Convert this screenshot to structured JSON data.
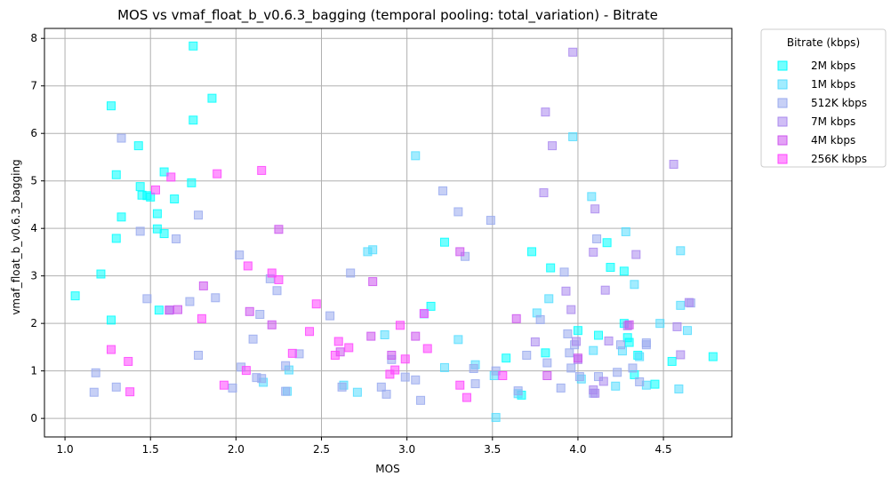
{
  "chart_data": {
    "type": "scatter",
    "title": "MOS vs vmaf_float_b_v0.6.3_bagging (temporal pooling: total_variation) - Bitrate",
    "xlabel": "MOS",
    "ylabel": "vmaf_float_b_v0.6.3_bagging",
    "xlim": [
      0.88,
      4.9
    ],
    "ylim": [
      -0.39,
      8.21
    ],
    "xticks": [
      "1.0",
      "1.5",
      "2.0",
      "2.5",
      "3.0",
      "3.5",
      "4.0",
      "4.5"
    ],
    "xtick_values": [
      1.0,
      1.5,
      2.0,
      2.5,
      3.0,
      3.5,
      4.0,
      4.5
    ],
    "yticks": [
      "0",
      "1",
      "2",
      "3",
      "4",
      "5",
      "6",
      "7",
      "8"
    ],
    "ytick_values": [
      0,
      1,
      2,
      3,
      4,
      5,
      6,
      7,
      8
    ],
    "grid": true,
    "legend_title": "Bitrate (kbps)",
    "legend_position": "outside-right",
    "series": [
      {
        "name": "2M kbps",
        "color": "#00ffff",
        "points": [
          [
            1.06,
            2.58
          ],
          [
            1.21,
            3.04
          ],
          [
            1.27,
            6.58
          ],
          [
            1.27,
            2.07
          ],
          [
            1.3,
            5.13
          ],
          [
            1.3,
            3.79
          ],
          [
            1.33,
            4.24
          ],
          [
            1.43,
            5.74
          ],
          [
            1.44,
            4.88
          ],
          [
            1.45,
            4.7
          ],
          [
            1.48,
            4.69
          ],
          [
            1.5,
            4.66
          ],
          [
            1.54,
            4.31
          ],
          [
            1.54,
            3.99
          ],
          [
            1.55,
            2.28
          ],
          [
            1.58,
            3.89
          ],
          [
            1.58,
            5.19
          ],
          [
            1.64,
            4.62
          ],
          [
            1.75,
            7.84
          ],
          [
            1.75,
            6.28
          ],
          [
            1.74,
            4.96
          ],
          [
            1.86,
            6.74
          ],
          [
            3.14,
            2.36
          ],
          [
            3.22,
            3.71
          ],
          [
            3.73,
            3.51
          ],
          [
            3.84,
            3.17
          ],
          [
            4.0,
            1.85
          ],
          [
            4.12,
            1.75
          ],
          [
            4.17,
            3.7
          ],
          [
            4.19,
            3.18
          ],
          [
            4.27,
            2.0
          ],
          [
            4.29,
            1.7
          ],
          [
            4.3,
            1.6
          ],
          [
            4.33,
            0.92
          ],
          [
            4.35,
            1.33
          ],
          [
            4.45,
            0.72
          ],
          [
            4.55,
            1.2
          ],
          [
            4.79,
            1.3
          ],
          [
            4.27,
            3.1
          ],
          [
            3.58,
            1.27
          ],
          [
            3.67,
            0.49
          ],
          [
            3.81,
            1.38
          ]
        ]
      },
      {
        "name": "1M kbps",
        "color": "#55ddff",
        "points": [
          [
            2.16,
            0.76
          ],
          [
            2.31,
            1.02
          ],
          [
            2.3,
            0.57
          ],
          [
            2.63,
            0.7
          ],
          [
            2.71,
            0.55
          ],
          [
            2.77,
            3.51
          ],
          [
            2.8,
            3.55
          ],
          [
            2.87,
            1.76
          ],
          [
            3.05,
            5.53
          ],
          [
            3.1,
            2.2
          ],
          [
            3.22,
            1.07
          ],
          [
            3.3,
            1.66
          ],
          [
            3.4,
            1.13
          ],
          [
            3.51,
            0.9
          ],
          [
            3.52,
            0.02
          ],
          [
            3.65,
            0.52
          ],
          [
            3.76,
            2.22
          ],
          [
            3.83,
            2.52
          ],
          [
            3.97,
            5.93
          ],
          [
            4.02,
            0.83
          ],
          [
            4.08,
            4.67
          ],
          [
            4.09,
            1.43
          ],
          [
            4.22,
            0.68
          ],
          [
            4.26,
            1.42
          ],
          [
            4.28,
            3.93
          ],
          [
            4.33,
            2.82
          ],
          [
            4.4,
            0.7
          ],
          [
            4.48,
            2.0
          ],
          [
            4.59,
            0.62
          ],
          [
            4.6,
            2.38
          ],
          [
            4.6,
            3.53
          ],
          [
            4.64,
            1.85
          ],
          [
            4.36,
            1.3
          ]
        ]
      },
      {
        "name": "512K kbps",
        "color": "#99aaee",
        "points": [
          [
            1.17,
            0.55
          ],
          [
            1.18,
            0.96
          ],
          [
            1.3,
            0.66
          ],
          [
            1.33,
            5.9
          ],
          [
            1.44,
            3.94
          ],
          [
            1.48,
            2.52
          ],
          [
            1.61,
            2.28
          ],
          [
            1.65,
            3.78
          ],
          [
            1.73,
            2.46
          ],
          [
            1.78,
            4.28
          ],
          [
            1.78,
            1.33
          ],
          [
            1.88,
            2.54
          ],
          [
            1.98,
            0.64
          ],
          [
            2.02,
            3.44
          ],
          [
            2.03,
            1.08
          ],
          [
            2.1,
            1.67
          ],
          [
            2.12,
            0.86
          ],
          [
            2.14,
            2.19
          ],
          [
            2.15,
            0.84
          ],
          [
            2.2,
            2.94
          ],
          [
            2.24,
            2.69
          ],
          [
            2.29,
            0.57
          ],
          [
            2.29,
            1.11
          ],
          [
            2.37,
            1.36
          ],
          [
            2.55,
            2.16
          ],
          [
            2.62,
            0.66
          ],
          [
            2.67,
            3.06
          ],
          [
            2.85,
            0.66
          ],
          [
            2.88,
            0.51
          ],
          [
            2.91,
            1.24
          ],
          [
            2.99,
            0.87
          ],
          [
            3.05,
            0.81
          ],
          [
            3.08,
            0.38
          ],
          [
            3.21,
            4.79
          ],
          [
            3.3,
            4.35
          ],
          [
            3.34,
            3.41
          ],
          [
            3.39,
            1.05
          ],
          [
            3.4,
            0.73
          ],
          [
            3.49,
            4.17
          ],
          [
            3.52,
            1.0
          ],
          [
            3.65,
            0.58
          ],
          [
            3.7,
            1.33
          ],
          [
            3.78,
            2.08
          ],
          [
            3.82,
            1.17
          ],
          [
            3.92,
            3.08
          ],
          [
            3.94,
            1.78
          ],
          [
            3.95,
            1.38
          ],
          [
            3.96,
            1.06
          ],
          [
            3.98,
            1.55
          ],
          [
            4.01,
            0.88
          ],
          [
            4.09,
            0.53
          ],
          [
            4.12,
            0.88
          ],
          [
            4.23,
            0.97
          ],
          [
            4.25,
            1.55
          ],
          [
            4.32,
            1.06
          ],
          [
            4.36,
            0.77
          ],
          [
            4.4,
            1.59
          ],
          [
            4.4,
            1.55
          ],
          [
            4.66,
            2.43
          ],
          [
            4.11,
            3.78
          ],
          [
            3.9,
            0.64
          ]
        ]
      },
      {
        "name": "7M kbps",
        "color": "#aa88ee",
        "points": [
          [
            3.75,
            1.61
          ],
          [
            3.8,
            4.75
          ],
          [
            3.81,
            6.45
          ],
          [
            3.85,
            5.74
          ],
          [
            3.93,
            2.68
          ],
          [
            3.96,
            2.29
          ],
          [
            3.97,
            7.71
          ],
          [
            3.99,
            1.62
          ],
          [
            4.09,
            3.5
          ],
          [
            4.1,
            4.41
          ],
          [
            4.1,
            0.53
          ],
          [
            4.16,
            2.7
          ],
          [
            4.18,
            1.63
          ],
          [
            4.29,
            1.95
          ],
          [
            4.34,
            3.45
          ],
          [
            4.56,
            5.35
          ],
          [
            4.58,
            1.93
          ],
          [
            4.6,
            1.34
          ],
          [
            4.65,
            2.44
          ],
          [
            4.15,
            0.78
          ],
          [
            4.0,
            1.24
          ],
          [
            4.09,
            0.6
          ]
        ]
      },
      {
        "name": "4M kbps",
        "color": "#cc55ee",
        "points": [
          [
            1.61,
            2.28
          ],
          [
            1.66,
            2.29
          ],
          [
            1.81,
            2.79
          ],
          [
            2.08,
            2.25
          ],
          [
            2.21,
            1.97
          ],
          [
            2.25,
            3.98
          ],
          [
            2.61,
            1.4
          ],
          [
            2.8,
            2.88
          ],
          [
            2.79,
            1.73
          ],
          [
            2.91,
            1.33
          ],
          [
            3.05,
            1.73
          ],
          [
            3.31,
            3.51
          ],
          [
            3.64,
            2.1
          ],
          [
            3.82,
            0.9
          ],
          [
            4.0,
            1.27
          ],
          [
            4.3,
            1.97
          ]
        ]
      },
      {
        "name": "256K kbps",
        "color": "#ff44ff",
        "points": [
          [
            1.27,
            1.45
          ],
          [
            1.37,
            1.2
          ],
          [
            1.38,
            0.56
          ],
          [
            1.53,
            4.81
          ],
          [
            1.62,
            5.08
          ],
          [
            1.8,
            2.1
          ],
          [
            1.89,
            5.15
          ],
          [
            1.93,
            0.7
          ],
          [
            2.06,
            1.01
          ],
          [
            2.07,
            3.21
          ],
          [
            2.15,
            5.22
          ],
          [
            2.21,
            3.06
          ],
          [
            2.25,
            2.92
          ],
          [
            2.33,
            1.37
          ],
          [
            2.43,
            1.83
          ],
          [
            2.47,
            2.41
          ],
          [
            2.58,
            1.33
          ],
          [
            2.6,
            1.62
          ],
          [
            2.66,
            1.49
          ],
          [
            2.9,
            0.93
          ],
          [
            2.93,
            1.02
          ],
          [
            2.96,
            1.96
          ],
          [
            2.99,
            1.25
          ],
          [
            3.1,
            2.21
          ],
          [
            3.12,
            1.47
          ],
          [
            3.31,
            0.7
          ],
          [
            3.35,
            0.44
          ],
          [
            3.56,
            0.9
          ]
        ]
      }
    ]
  }
}
